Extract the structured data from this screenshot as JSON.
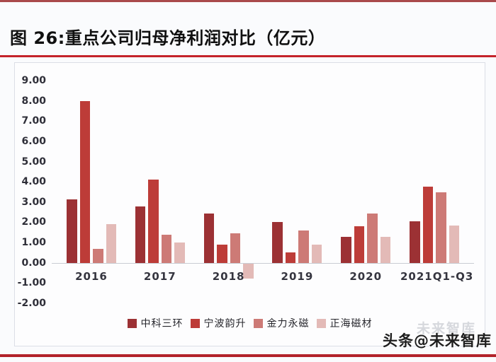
{
  "header": {
    "title": "图 26:重点公司归母净利润对比（亿元）"
  },
  "colors": {
    "top_rule": "#a94a4c",
    "title_underline": "#c4232a",
    "bottom_rule": "#b2222a",
    "card_border": "#dbdee6",
    "card_bg": "#fdfdfe",
    "axis_line": "#c9ccd3",
    "axis_text": "#2e2e38"
  },
  "watermark": {
    "text": "头条@未来智库",
    "ghost_text": "未来智库"
  },
  "chart_data": {
    "type": "bar",
    "title": "图 26:重点公司归母净利润对比（亿元）",
    "categories": [
      "2016",
      "2017",
      "2018",
      "2019",
      "2020",
      "2021Q1-Q3"
    ],
    "series": [
      {
        "name": "中科三环",
        "color": "#9c3134",
        "values": [
          3.15,
          2.8,
          2.45,
          2.0,
          1.3,
          2.05
        ]
      },
      {
        "name": "宁波韵升",
        "color": "#bd3c38",
        "values": [
          8.0,
          4.1,
          0.9,
          0.5,
          1.8,
          3.75
        ]
      },
      {
        "name": "金力永磁",
        "color": "#cd7a76",
        "values": [
          0.7,
          1.4,
          1.45,
          1.6,
          2.45,
          3.5
        ]
      },
      {
        "name": "正海磁材",
        "color": "#e3bab7",
        "values": [
          1.9,
          1.0,
          -0.75,
          0.9,
          1.3,
          1.85
        ]
      }
    ],
    "ylim": [
      -2,
      9
    ],
    "ytick_labels": [
      "9.00",
      "8.00",
      "7.00",
      "6.00",
      "5.00",
      "4.00",
      "3.00",
      "2.00",
      "1.00",
      "0.00",
      "-1.00",
      "-2.00"
    ],
    "grid": false,
    "legend_position": "bottom"
  }
}
